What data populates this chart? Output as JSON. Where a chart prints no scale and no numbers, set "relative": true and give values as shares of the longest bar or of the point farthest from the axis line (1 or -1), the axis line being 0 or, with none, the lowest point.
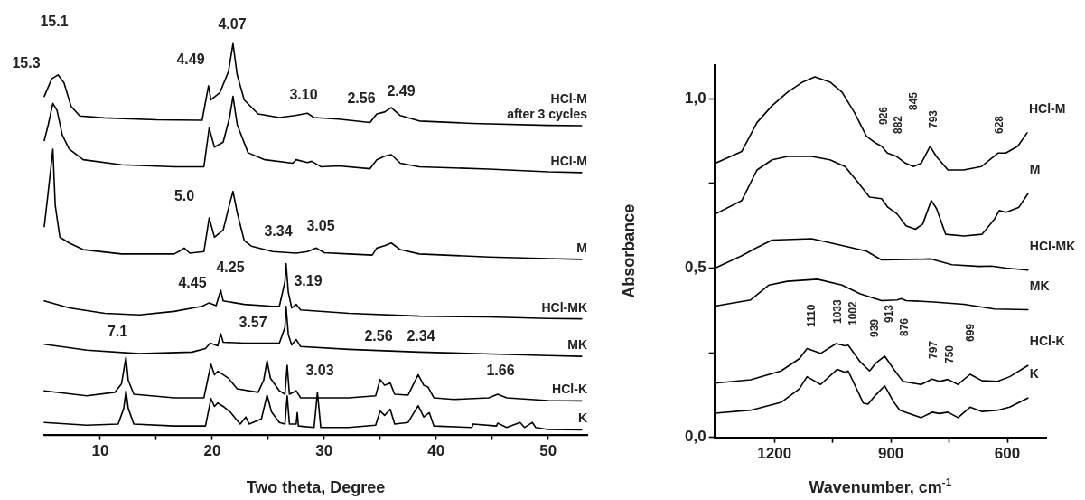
{
  "chart_data": [
    {
      "type": "line",
      "xlabel": "Two theta, Degree",
      "relative": true,
      "grid": false,
      "marker": "none",
      "xlim": [
        5,
        53.5
      ],
      "xticks": [
        10,
        {
          "value": 15,
          "label": null
        },
        20,
        {
          "value": 25,
          "label": null
        },
        30,
        {
          "value": 35,
          "label": null
        },
        40,
        {
          "value": 45,
          "label": null
        },
        50
      ],
      "series": [
        {
          "name": "HCl-M\nafter 3 cycles",
          "color": "#000000",
          "x": [
            5.0,
            5.67,
            6.23,
            6.76,
            7.39,
            8.17,
            10.36,
            15.04,
            19.1,
            19.67,
            19.89,
            20.67,
            21.45,
            21.86,
            22.23,
            22.86,
            24.1,
            26.0,
            27.4,
            28.5,
            29.1,
            31.3,
            34.1,
            34.7,
            35.4,
            36.0,
            36.8,
            38.5,
            43.2,
            50.0,
            53.0
          ],
          "values": [
            0.865,
            0.91,
            0.92,
            0.9,
            0.84,
            0.815,
            0.81,
            0.805,
            0.804,
            0.892,
            0.856,
            0.874,
            0.928,
            1.0,
            0.92,
            0.856,
            0.82,
            0.811,
            0.816,
            0.822,
            0.811,
            0.807,
            0.798,
            0.82,
            0.825,
            0.836,
            0.816,
            0.802,
            0.796,
            0.791,
            0.79
          ]
        },
        {
          "name": "HCl-M",
          "color": "#000000",
          "x": [
            5.0,
            5.36,
            5.77,
            6.14,
            6.61,
            7.23,
            8.48,
            11.9,
            16.6,
            19.26,
            19.73,
            20.2,
            20.98,
            21.55,
            21.86,
            22.23,
            23.2,
            24.7,
            27.2,
            27.5,
            28.5,
            28.9,
            29.7,
            31.3,
            34.1,
            34.7,
            35.4,
            36.0,
            36.8,
            38.5,
            44.7,
            50.0,
            53.0
          ],
          "values": [
            0.752,
            0.793,
            0.847,
            0.829,
            0.766,
            0.73,
            0.703,
            0.69,
            0.685,
            0.685,
            0.784,
            0.735,
            0.748,
            0.811,
            0.865,
            0.793,
            0.721,
            0.703,
            0.694,
            0.703,
            0.696,
            0.699,
            0.685,
            0.687,
            0.68,
            0.703,
            0.712,
            0.716,
            0.694,
            0.685,
            0.679,
            0.672,
            0.67
          ]
        },
        {
          "name": "M",
          "color": "#000000",
          "x": [
            5.0,
            5.36,
            5.77,
            5.98,
            6.39,
            7.23,
            8.48,
            11.9,
            16.6,
            17.2,
            17.5,
            18.0,
            19.26,
            19.73,
            20.2,
            20.98,
            21.6,
            21.86,
            22.23,
            22.86,
            23.5,
            25.4,
            27.5,
            28.5,
            29.3,
            30.0,
            32.2,
            34.3,
            34.7,
            35.4,
            36.0,
            36.8,
            38.5,
            44.7,
            50.0,
            53.0
          ],
          "values": [
            0.532,
            0.622,
            0.73,
            0.586,
            0.505,
            0.49,
            0.473,
            0.462,
            0.462,
            0.471,
            0.477,
            0.464,
            0.468,
            0.554,
            0.505,
            0.523,
            0.595,
            0.622,
            0.568,
            0.496,
            0.482,
            0.468,
            0.464,
            0.468,
            0.477,
            0.465,
            0.462,
            0.459,
            0.477,
            0.483,
            0.49,
            0.473,
            0.462,
            0.454,
            0.45,
            0.448
          ]
        },
        {
          "name": "HCl-MK",
          "color": "#000000",
          "x": [
            5.0,
            7.23,
            10.4,
            13.5,
            16.6,
            19.1,
            19.73,
            20.35,
            20.76,
            20.98,
            22.86,
            25.4,
            26.0,
            26.5,
            26.6,
            26.8,
            27.1,
            27.5,
            27.9,
            32.2,
            38.5,
            44.7,
            50.0,
            53.0
          ],
          "values": [
            0.342,
            0.324,
            0.31,
            0.306,
            0.315,
            0.328,
            0.337,
            0.33,
            0.369,
            0.342,
            0.333,
            0.328,
            0.328,
            0.391,
            0.437,
            0.364,
            0.324,
            0.333,
            0.319,
            0.31,
            0.303,
            0.301,
            0.297,
            0.296
          ]
        },
        {
          "name": "MK",
          "color": "#000000",
          "x": [
            5.0,
            8.8,
            13.5,
            18.2,
            19.4,
            19.82,
            20.5,
            20.76,
            20.98,
            22.86,
            26.0,
            26.5,
            26.6,
            26.8,
            27.1,
            27.5,
            27.9,
            32.2,
            38.5,
            50.0,
            53.0
          ],
          "values": [
            0.231,
            0.216,
            0.207,
            0.211,
            0.22,
            0.234,
            0.227,
            0.258,
            0.236,
            0.234,
            0.234,
            0.274,
            0.328,
            0.256,
            0.229,
            0.243,
            0.225,
            0.218,
            0.211,
            0.202,
            0.2
          ]
        },
        {
          "name": "HCl-K",
          "color": "#000000",
          "x": [
            5.0,
            8.8,
            11.3,
            11.9,
            12.3,
            12.5,
            13.0,
            16.6,
            19.26,
            19.89,
            20.2,
            20.5,
            20.98,
            21.45,
            22.23,
            24.1,
            24.6,
            24.9,
            25.2,
            26.0,
            26.5,
            26.7,
            26.9,
            27.5,
            27.9,
            32.2,
            34.6,
            35.0,
            35.4,
            35.9,
            36.3,
            37.5,
            38.4,
            38.9,
            39.3,
            39.8,
            41.6,
            44.7,
            45.5,
            46.3,
            50.0,
            53.0
          ],
          "values": [
            0.112,
            0.099,
            0.108,
            0.13,
            0.198,
            0.139,
            0.103,
            0.094,
            0.094,
            0.18,
            0.153,
            0.162,
            0.153,
            0.144,
            0.117,
            0.108,
            0.139,
            0.189,
            0.144,
            0.112,
            0.103,
            0.177,
            0.103,
            0.112,
            0.094,
            0.094,
            0.099,
            0.141,
            0.126,
            0.132,
            0.103,
            0.101,
            0.153,
            0.126,
            0.121,
            0.094,
            0.09,
            0.094,
            0.103,
            0.094,
            0.087,
            0.086
          ]
        },
        {
          "name": "K",
          "color": "#000000",
          "x": [
            5.0,
            8.8,
            11.6,
            12.1,
            12.3,
            12.5,
            13.0,
            16.6,
            19.4,
            19.89,
            20.2,
            20.5,
            20.98,
            21.6,
            22.5,
            23.0,
            23.3,
            24.4,
            24.9,
            25.3,
            26.0,
            26.5,
            26.7,
            26.9,
            27.5,
            27.6,
            27.7,
            29.1,
            29.4,
            29.7,
            32.2,
            34.6,
            35.0,
            35.4,
            35.9,
            36.3,
            37.5,
            38.4,
            38.9,
            39.4,
            39.8,
            43.2,
            43.3,
            45.4,
            45.5,
            46.3,
            47.5,
            47.9,
            48.6,
            48.9,
            50.0,
            53.0
          ],
          "values": [
            0.031,
            0.024,
            0.027,
            0.067,
            0.112,
            0.067,
            0.027,
            0.022,
            0.022,
            0.092,
            0.072,
            0.081,
            0.072,
            0.058,
            0.027,
            0.045,
            0.027,
            0.04,
            0.101,
            0.058,
            0.031,
            0.027,
            0.099,
            0.027,
            0.027,
            0.056,
            0.022,
            0.018,
            0.108,
            0.018,
            0.018,
            0.024,
            0.06,
            0.049,
            0.065,
            0.027,
            0.031,
            0.074,
            0.045,
            0.056,
            0.022,
            0.018,
            0.027,
            0.022,
            0.029,
            0.018,
            0.031,
            0.018,
            0.031,
            0.018,
            0.013,
            0.012
          ]
        }
      ],
      "annotations": [
        "15.1",
        "15.3",
        "4.49",
        "4.07",
        "3.10",
        "2.56",
        "2.49",
        "5.0",
        "3.34",
        "3.05",
        "4.45",
        "4.25",
        "3.19",
        "7.1",
        "3.57",
        "2.56",
        "2.34",
        "3.03",
        "1.66"
      ]
    },
    {
      "type": "line",
      "xlabel": "Wavenumber, cm$^{-1}$",
      "ylabel": "Absorbance",
      "grid": false,
      "marker": "none",
      "xlim": [
        1355,
        500
      ],
      "xticks": [
        1200,
        {
          "value": 1050,
          "label": null
        },
        900,
        {
          "value": 750,
          "label": null
        },
        600
      ],
      "ylim": [
        0,
        1.1
      ],
      "yticks": [
        {
          "value": 0,
          "label": "0,0"
        },
        {
          "value": 0.25,
          "label": null
        },
        {
          "value": 0.5,
          "label": "0,5"
        },
        {
          "value": 0.75,
          "label": null
        },
        {
          "value": 1.0,
          "label": "1,0"
        }
      ],
      "series": [
        {
          "name": "HCl-M",
          "color": "#000000",
          "x": [
            1352,
            1284,
            1245,
            1206,
            1166,
            1127,
            1096,
            1057,
            1026,
            994,
            963,
            940,
            924,
            909,
            885,
            862,
            842,
            822,
            799,
            783,
            753,
            713,
            667,
            635,
            624,
            604,
            573,
            549
          ],
          "values": [
            0.81,
            0.845,
            0.93,
            0.98,
            1.02,
            1.05,
            1.065,
            1.05,
            1.02,
            0.96,
            0.89,
            0.87,
            0.86,
            0.84,
            0.83,
            0.81,
            0.8,
            0.81,
            0.86,
            0.83,
            0.79,
            0.79,
            0.8,
            0.83,
            0.84,
            0.84,
            0.86,
            0.9
          ]
        },
        {
          "name": "M",
          "color": "#000000",
          "x": [
            1352,
            1284,
            1245,
            1206,
            1166,
            1104,
            1057,
            1018,
            986,
            955,
            924,
            908,
            884,
            861,
            837,
            818,
            796,
            782,
            759,
            712,
            665,
            633,
            621,
            603,
            570,
            547
          ],
          "values": [
            0.66,
            0.7,
            0.79,
            0.82,
            0.83,
            0.83,
            0.82,
            0.8,
            0.755,
            0.71,
            0.705,
            0.68,
            0.66,
            0.625,
            0.615,
            0.63,
            0.7,
            0.675,
            0.6,
            0.595,
            0.6,
            0.645,
            0.67,
            0.665,
            0.68,
            0.72
          ]
        },
        {
          "name": "HCl-MK",
          "color": "#000000",
          "x": [
            1353,
            1285,
            1246,
            1206,
            1104,
            1026,
            963,
            924,
            796,
            743,
            672,
            641,
            603,
            547
          ],
          "values": [
            0.5,
            0.536,
            0.56,
            0.583,
            0.587,
            0.567,
            0.55,
            0.524,
            0.527,
            0.51,
            0.505,
            0.506,
            0.5,
            0.494
          ]
        },
        {
          "name": "MK",
          "color": "#000000",
          "x": [
            1353,
            1261,
            1214,
            1167,
            1089,
            1026,
            979,
            924,
            884,
            873,
            861,
            790,
            712,
            633,
            547
          ],
          "values": [
            0.388,
            0.406,
            0.45,
            0.461,
            0.467,
            0.45,
            0.424,
            0.404,
            0.406,
            0.41,
            0.404,
            0.4,
            0.393,
            0.379,
            0.377
          ]
        },
        {
          "name": "HCl-K",
          "color": "#000000",
          "x": [
            1353,
            1261,
            1183,
            1136,
            1116,
            1081,
            1041,
            1018,
            1010,
            979,
            955,
            939,
            916,
            892,
            869,
            822,
            794,
            775,
            753,
            727,
            696,
            665,
            625,
            594,
            547
          ],
          "values": [
            0.16,
            0.17,
            0.196,
            0.232,
            0.262,
            0.248,
            0.277,
            0.27,
            0.272,
            0.223,
            0.196,
            0.219,
            0.24,
            0.2,
            0.165,
            0.156,
            0.172,
            0.165,
            0.171,
            0.156,
            0.186,
            0.167,
            0.165,
            0.179,
            0.212
          ]
        },
        {
          "name": "K",
          "color": "#000000",
          "x": [
            1353,
            1261,
            1183,
            1136,
            1116,
            1081,
            1038,
            1018,
            1010,
            971,
            959,
            939,
            916,
            892,
            877,
            822,
            794,
            775,
            753,
            727,
            696,
            665,
            625,
            594,
            547
          ],
          "values": [
            0.071,
            0.08,
            0.103,
            0.143,
            0.179,
            0.156,
            0.201,
            0.192,
            0.196,
            0.101,
            0.098,
            0.125,
            0.152,
            0.103,
            0.08,
            0.058,
            0.074,
            0.07,
            0.074,
            0.058,
            0.089,
            0.076,
            0.08,
            0.089,
            0.116
          ]
        }
      ],
      "annotations": [
        "926",
        "882",
        "845",
        "793",
        "628",
        "1110",
        "1033",
        "1002",
        "939",
        "913",
        "876",
        "797",
        "750",
        "699"
      ]
    }
  ]
}
